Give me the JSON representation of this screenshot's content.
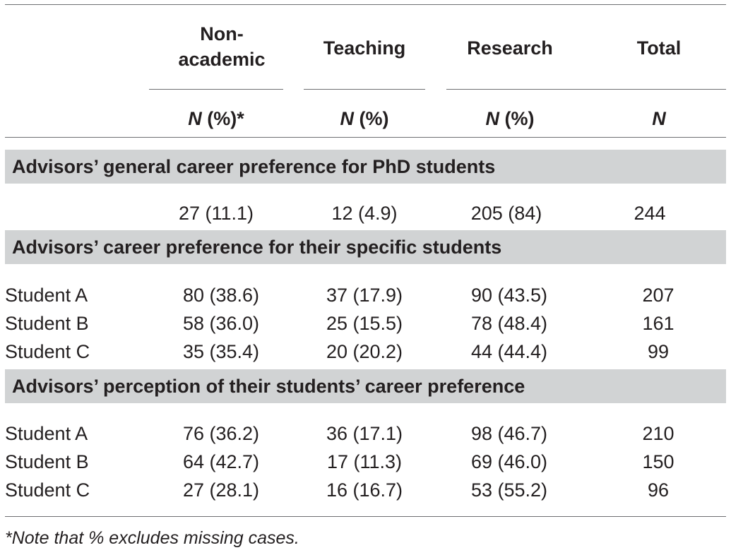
{
  "columns": {
    "nonacademic": "Non-academic",
    "teaching": "Teaching",
    "research": "Research",
    "total": "Total"
  },
  "subheaders": {
    "nonacademic": "N (%)*",
    "teaching": "N (%)",
    "research": "N (%)",
    "total": "N"
  },
  "sections": [
    {
      "title": "Advisors’ general career preference for PhD students",
      "rows": [
        {
          "label": "",
          "nonacademic": "27 (11.1)",
          "teaching": "12 (4.9)",
          "research": "205 (84)",
          "total": "244"
        }
      ]
    },
    {
      "title": "Advisors’ career preference for their specific students",
      "rows": [
        {
          "label": "Student A",
          "nonacademic": "80 (38.6)",
          "teaching": "37 (17.9)",
          "research": "90 (43.5)",
          "total": "207"
        },
        {
          "label": "Student B",
          "nonacademic": "58 (36.0)",
          "teaching": "25 (15.5)",
          "research": "78 (48.4)",
          "total": "161"
        },
        {
          "label": "Student C",
          "nonacademic": "35 (35.4)",
          "teaching": "20 (20.2)",
          "research": "44 (44.4)",
          "total": "99"
        }
      ]
    },
    {
      "title": "Advisors’ perception of their students’ career preference",
      "rows": [
        {
          "label": "Student A",
          "nonacademic": "76 (36.2)",
          "teaching": "36 (17.1)",
          "research": "98 (46.7)",
          "total": "210"
        },
        {
          "label": "Student B",
          "nonacademic": "64 (42.7)",
          "teaching": "17 (11.3)",
          "research": "69 (46.0)",
          "total": "150"
        },
        {
          "label": "Student C",
          "nonacademic": "27 (28.1)",
          "teaching": "16 (16.7)",
          "research": "53 (55.2)",
          "total": "96"
        }
      ]
    }
  ],
  "footnote": "*Note that % excludes missing cases."
}
